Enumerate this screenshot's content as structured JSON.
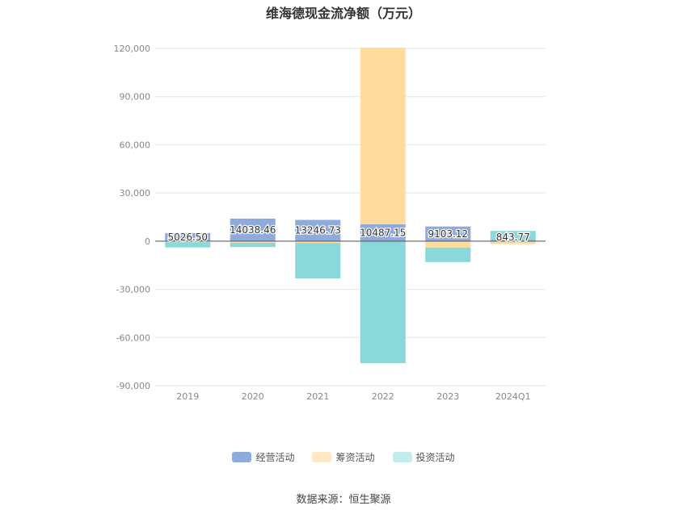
{
  "chart_data": {
    "type": "bar",
    "stacked": true,
    "title": "维海德现金流净额（万元）",
    "categories": [
      "2019",
      "2020",
      "2021",
      "2022",
      "2023",
      "2024Q1"
    ],
    "series": [
      {
        "name": "经营活动",
        "color": "#8faadc",
        "values": [
          5026.5,
          14038.46,
          13246.73,
          10487.15,
          9103.12,
          843.77
        ]
      },
      {
        "name": "筹资活动",
        "color": "#ffdc9c",
        "values": [
          -700,
          -1000,
          -1200,
          110000,
          -4000,
          -1800
        ]
      },
      {
        "name": "投资活动",
        "color": "#8ad8da",
        "values": [
          -3200,
          -2700,
          -22000,
          -76000,
          -9000,
          5500
        ]
      }
    ],
    "data_labels": [
      "5026.50",
      "14038.46",
      "13246.73",
      "10487.15",
      "9103.12",
      "843.77"
    ],
    "ylim": [
      -90000,
      120000
    ],
    "yticks": [
      120000,
      90000,
      60000,
      30000,
      0,
      -30000,
      -60000,
      -90000
    ],
    "ytick_labels": [
      "120,000",
      "90,000",
      "60,000",
      "30,000",
      "0",
      "-30,000",
      "-60,000",
      "-90,000"
    ],
    "grid": true,
    "legend_position": "bottom",
    "legend_colors": [
      "#8faadc",
      "#ffe8c4",
      "#c3ecec"
    ]
  },
  "source": "数据来源：恒生聚源"
}
